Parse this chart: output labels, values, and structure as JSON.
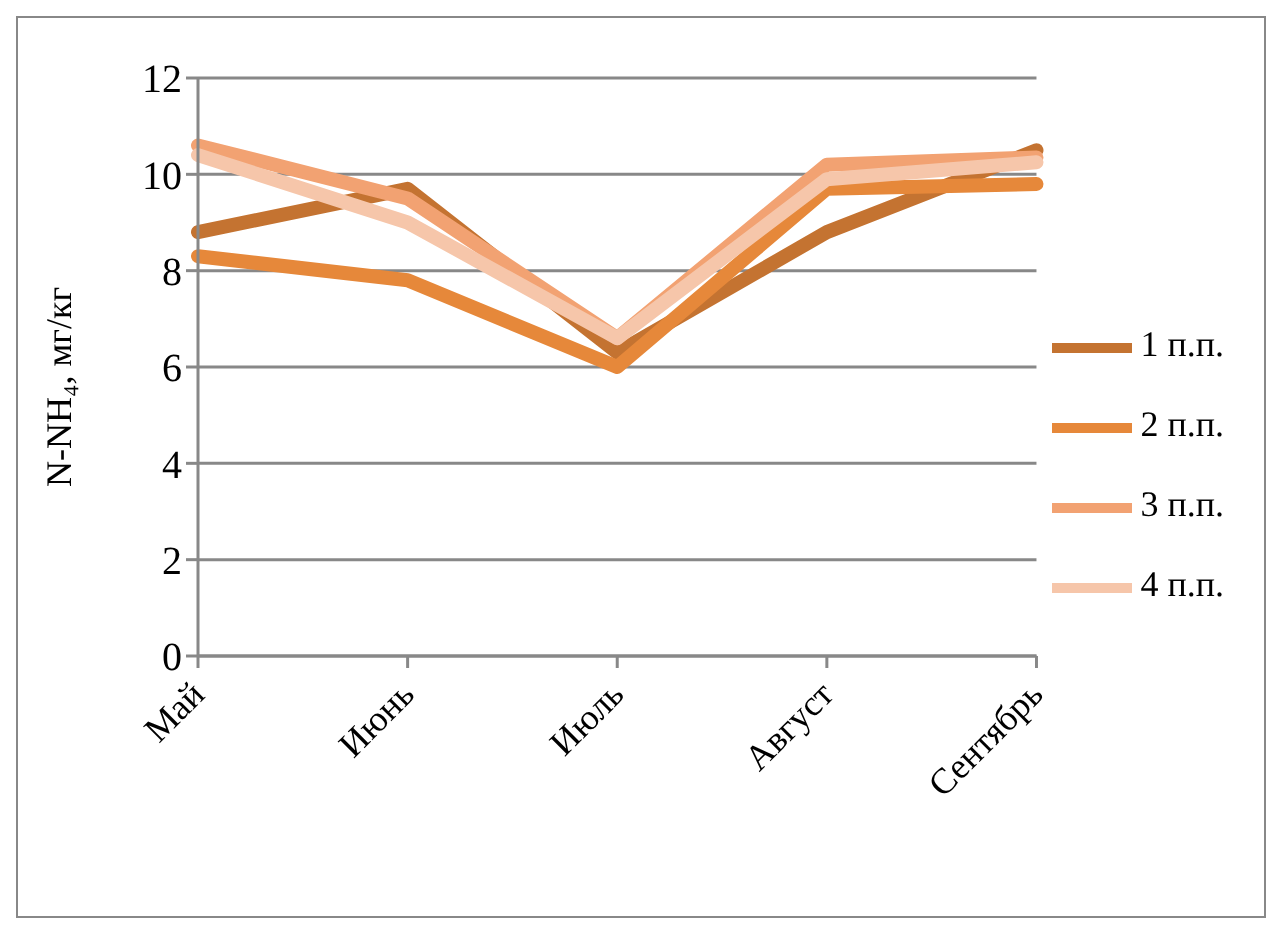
{
  "chart_data": {
    "type": "line",
    "ylabel": "N-NH₄, мг/кг",
    "categories": [
      "Май",
      "Июнь",
      "Июль",
      "Август",
      "Сентябрь"
    ],
    "series": [
      {
        "name": "1 п.п.",
        "color": "#c47331",
        "values": [
          8.8,
          9.7,
          6.3,
          8.8,
          10.5
        ]
      },
      {
        "name": "2 п.п.",
        "color": "#e6883a",
        "values": [
          8.3,
          7.8,
          6.0,
          9.7,
          9.8
        ]
      },
      {
        "name": "3 п.п.",
        "color": "#f2a272",
        "values": [
          10.6,
          9.5,
          6.6,
          10.2,
          10.35
        ]
      },
      {
        "name": "4 п.п.",
        "color": "#f6c6aa",
        "values": [
          10.4,
          9.0,
          6.6,
          9.9,
          10.25
        ]
      }
    ],
    "ylim": [
      0,
      12
    ],
    "yticks": [
      0,
      2,
      4,
      6,
      8,
      10,
      12
    ],
    "grid": "y",
    "legend": "right",
    "marker": "none",
    "line_style": "solid"
  }
}
